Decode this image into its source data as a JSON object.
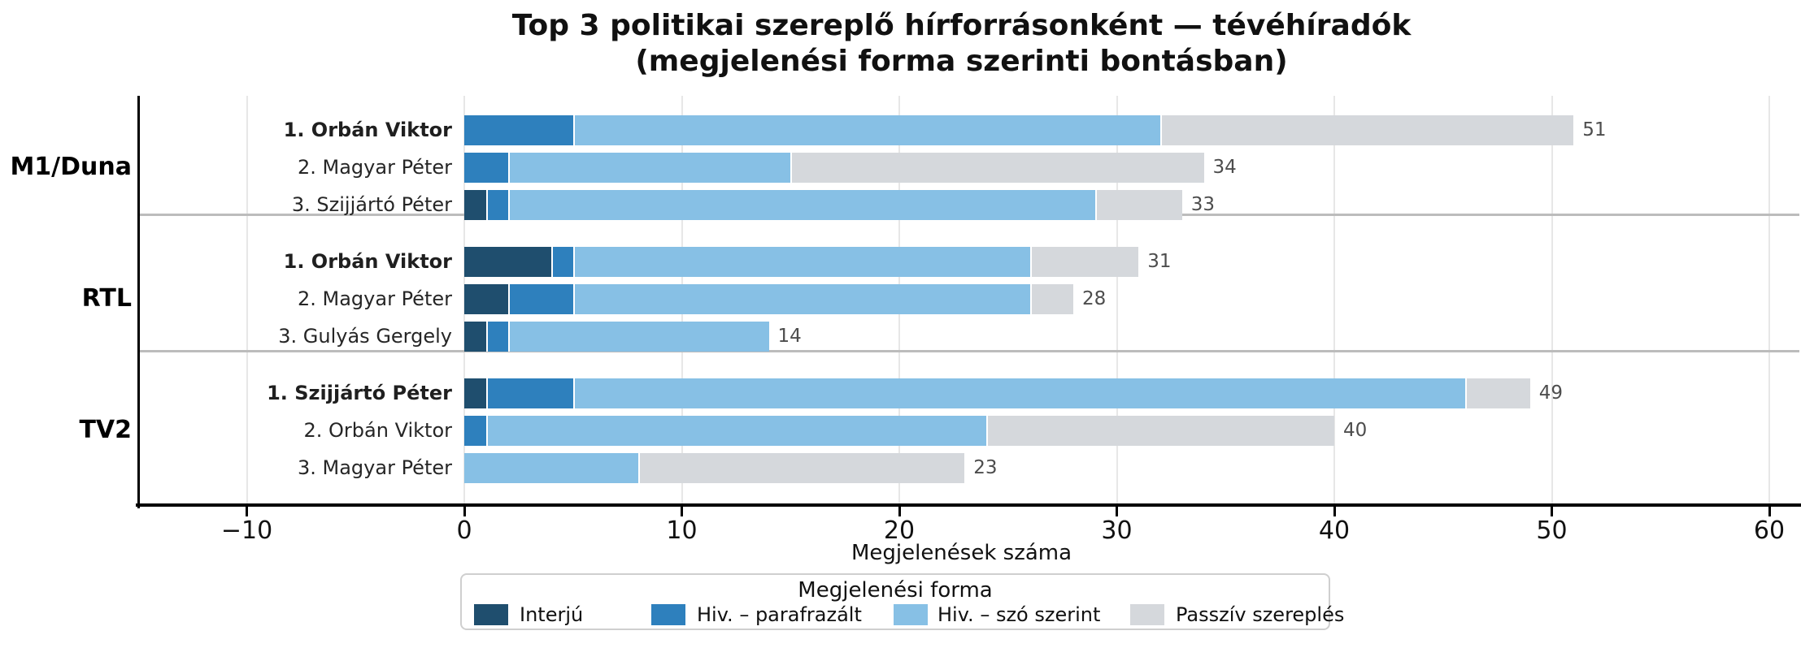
{
  "title": {
    "line1": "Top 3 politikai szereplő hírforrásonként — tévéhíradók",
    "line2": "(megjelenési forma szerinti bontásban)"
  },
  "chart_data": {
    "type": "bar",
    "orientation": "horizontal",
    "stacked": true,
    "xlabel": "Megjelenések száma",
    "xlim": [
      -15,
      61.5
    ],
    "x_ticks": [
      -10,
      0,
      10,
      20,
      30,
      40,
      50,
      60
    ],
    "x_tick_labels": [
      "−10",
      "0",
      "10",
      "20",
      "30",
      "40",
      "50",
      "60"
    ],
    "grid": "vertical",
    "legend": {
      "title": "Megjelenési forma",
      "position": "bottom",
      "entries": [
        {
          "label": "Interjú",
          "color": "#1f4e6e"
        },
        {
          "label": "Hiv. – parafrazált",
          "color": "#2e80bd"
        },
        {
          "label": "Hiv. – szó szerint",
          "color": "#87c0e5"
        },
        {
          "label": "Passzív szereplés",
          "color": "#d5d8dc"
        }
      ]
    },
    "groups": [
      {
        "label": "M1/Duna",
        "rows": [
          {
            "label": "1. Orbán Viktor",
            "bold": true,
            "values": [
              0,
              5,
              27,
              19
            ],
            "total": 51
          },
          {
            "label": "2. Magyar Péter",
            "bold": false,
            "values": [
              0,
              2,
              13,
              19
            ],
            "total": 34
          },
          {
            "label": "3. Szijjártó Péter",
            "bold": false,
            "values": [
              1,
              1,
              27,
              4
            ],
            "total": 33
          }
        ]
      },
      {
        "label": "RTL",
        "rows": [
          {
            "label": "1. Orbán Viktor",
            "bold": true,
            "values": [
              4,
              1,
              21,
              5
            ],
            "total": 31
          },
          {
            "label": "2. Magyar Péter",
            "bold": false,
            "values": [
              2,
              3,
              21,
              2
            ],
            "total": 28
          },
          {
            "label": "3. Gulyás Gergely",
            "bold": false,
            "values": [
              1,
              1,
              12,
              0
            ],
            "total": 14
          }
        ]
      },
      {
        "label": "TV2",
        "rows": [
          {
            "label": "1. Szijjártó Péter",
            "bold": true,
            "values": [
              1,
              4,
              41,
              3
            ],
            "total": 49
          },
          {
            "label": "2. Orbán Viktor",
            "bold": false,
            "values": [
              0,
              1,
              23,
              16
            ],
            "total": 40
          },
          {
            "label": "3. Magyar Péter",
            "bold": false,
            "values": [
              0,
              0,
              8,
              15
            ],
            "total": 23
          }
        ]
      }
    ]
  }
}
